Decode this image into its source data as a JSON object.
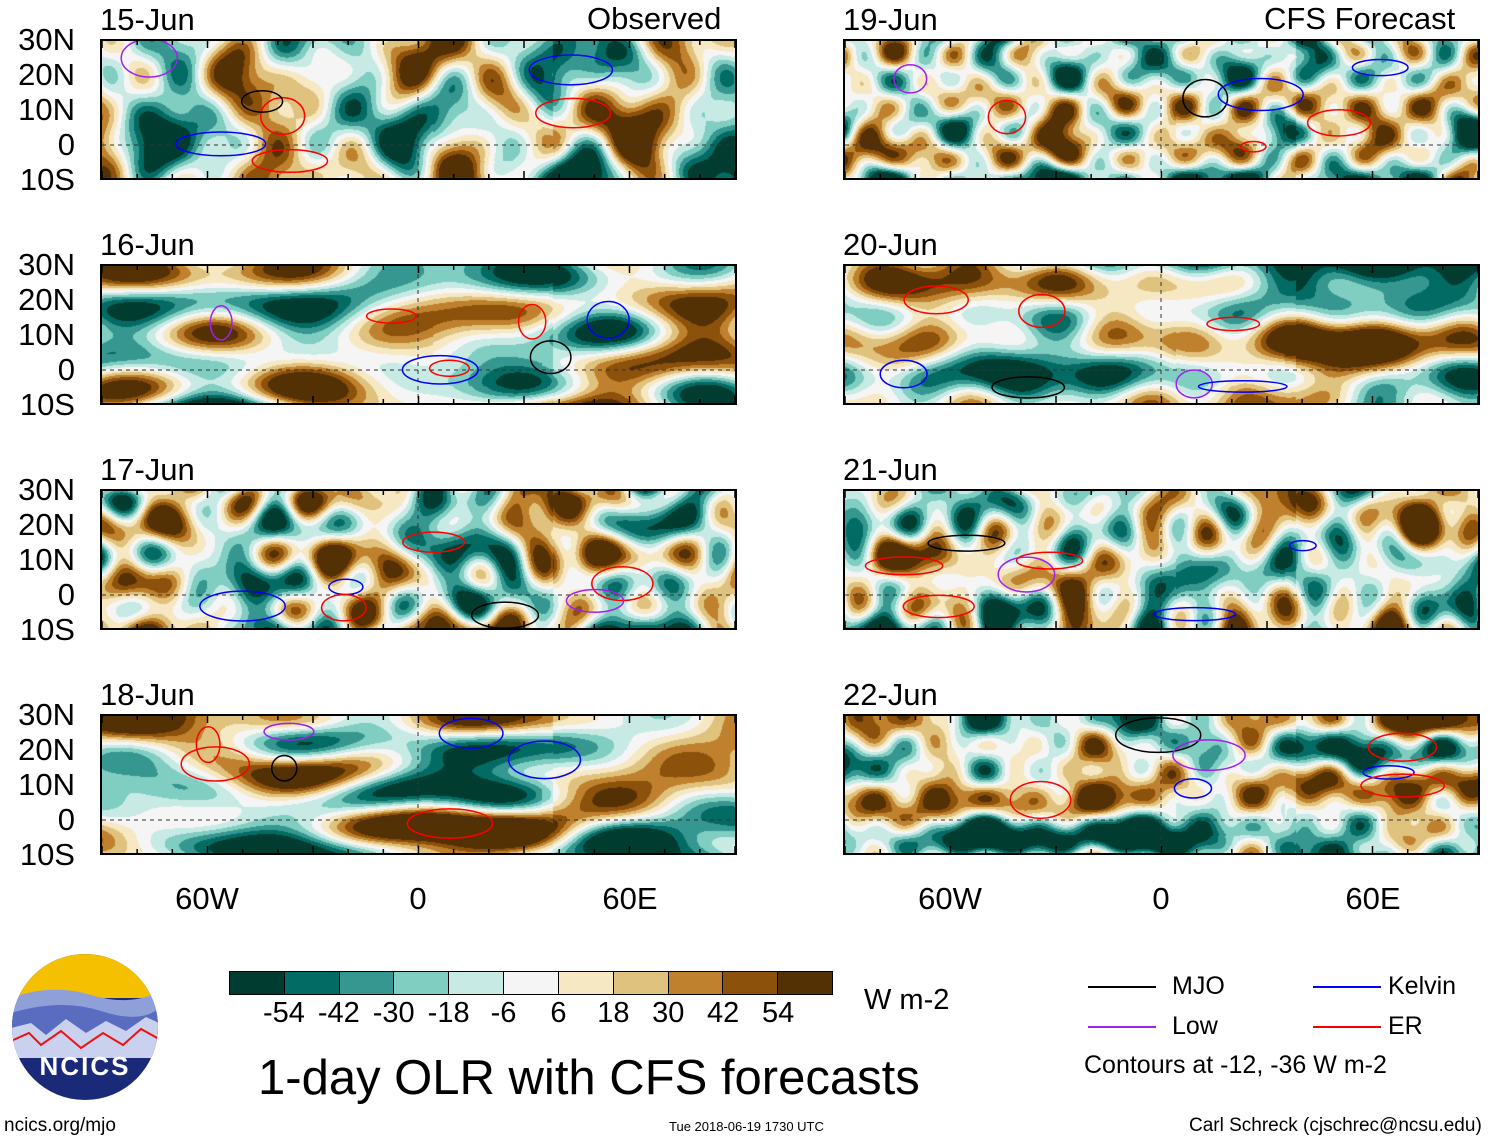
{
  "title": "1-day OLR with CFS forecasts",
  "headers": {
    "observed": "Observed",
    "forecast": "CFS Forecast"
  },
  "panels": {
    "observed": [
      "15-Jun",
      "16-Jun",
      "17-Jun",
      "18-Jun"
    ],
    "forecast": [
      "19-Jun",
      "20-Jun",
      "21-Jun",
      "22-Jun"
    ]
  },
  "lat_labels": [
    "30N",
    "20N",
    "10N",
    "0",
    "10S"
  ],
  "lon_labels": [
    "60W",
    "0",
    "60E"
  ],
  "colorbar": {
    "levels": [
      "-54",
      "-42",
      "-30",
      "-18",
      "-6",
      "6",
      "18",
      "30",
      "42",
      "54"
    ],
    "colors": [
      "#013c30",
      "#026b63",
      "#35978f",
      "#80cdc1",
      "#c7eae5",
      "#f5f5f5",
      "#f6e8c3",
      "#dfc27d",
      "#bf812d",
      "#8c510a",
      "#543005"
    ],
    "unit": "W m-2"
  },
  "legend": {
    "items": [
      {
        "label": "MJO",
        "color": "#000000"
      },
      {
        "label": "Kelvin",
        "color": "#0000ff"
      },
      {
        "label": "Low",
        "color": "#a020f0"
      },
      {
        "label": "ER",
        "color": "#ff0000"
      }
    ],
    "note": "Contours at -12, -36 W m-2"
  },
  "logo": {
    "text": "NCICS"
  },
  "footer": {
    "left": "ncics.org/mjo",
    "center": "Tue 2018-06-19 1730 UTC",
    "right": "Carl Schreck (cjschrec@ncsu.edu)"
  }
}
